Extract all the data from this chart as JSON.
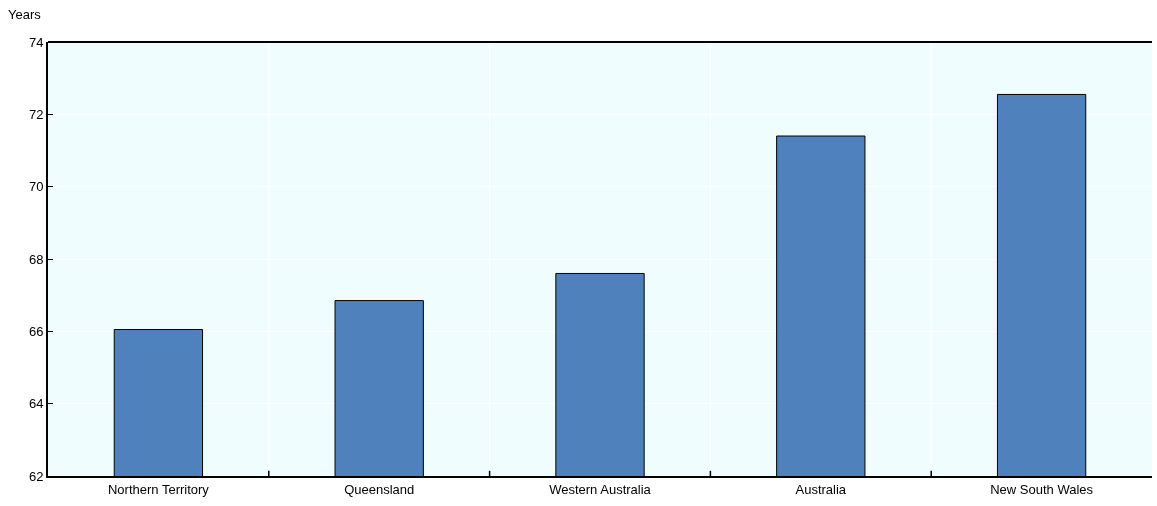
{
  "chart_data": {
    "type": "bar",
    "ylabel": "Years",
    "categories": [
      "Northern Territory",
      "Queensland",
      "Western Australia",
      "Australia",
      "New South Wales"
    ],
    "values": [
      66.05,
      66.85,
      67.6,
      71.4,
      72.55
    ],
    "color": "#4f81bd",
    "ylim": [
      62,
      74
    ],
    "yticks": [
      62,
      64,
      66,
      68,
      70,
      72,
      74
    ],
    "grid": true
  }
}
